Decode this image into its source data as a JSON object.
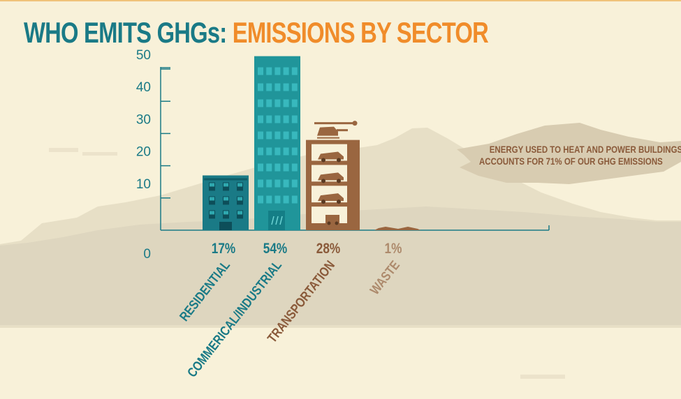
{
  "title": {
    "part1": "WHO EMITS GHGs:",
    "part2": "EMISSIONS BY SECTOR"
  },
  "callout": {
    "line1": "ENERGY USED TO HEAT AND POWER BUILDINGS",
    "line2": "ACCOUNTS FOR 71% OF OUR GHG EMISSIONS"
  },
  "colors": {
    "background": "#f8f1d9",
    "teal": "#1a7a86",
    "orange": "#f08c2a",
    "brown": "#8a5a3a",
    "tan": "#ad8a6c",
    "mountain": "#e7dfc6",
    "foreground": "#ded6bf"
  },
  "chart_data": {
    "type": "bar",
    "categories": [
      "RESIDENTIAL",
      "COMMERICAL/INDUSTRIAL",
      "TRANSPORTATION",
      "WASTE"
    ],
    "values": [
      17,
      54,
      28,
      1
    ],
    "labels": [
      "17%",
      "54%",
      "28%",
      "1%"
    ],
    "bar_styles": [
      "apartment-building",
      "office-tower",
      "parking-garage",
      "waste-pile"
    ],
    "bar_colors": [
      "#1a7a86",
      "#20959a",
      "#9a6640",
      "#9a6640"
    ],
    "label_colors": [
      "#1a7a86",
      "#1a7a86",
      "#8a5a3a",
      "#ad8a6c"
    ],
    "yticks": [
      0,
      10,
      20,
      30,
      40,
      50
    ],
    "ylim": [
      0,
      54
    ],
    "grid": false
  }
}
